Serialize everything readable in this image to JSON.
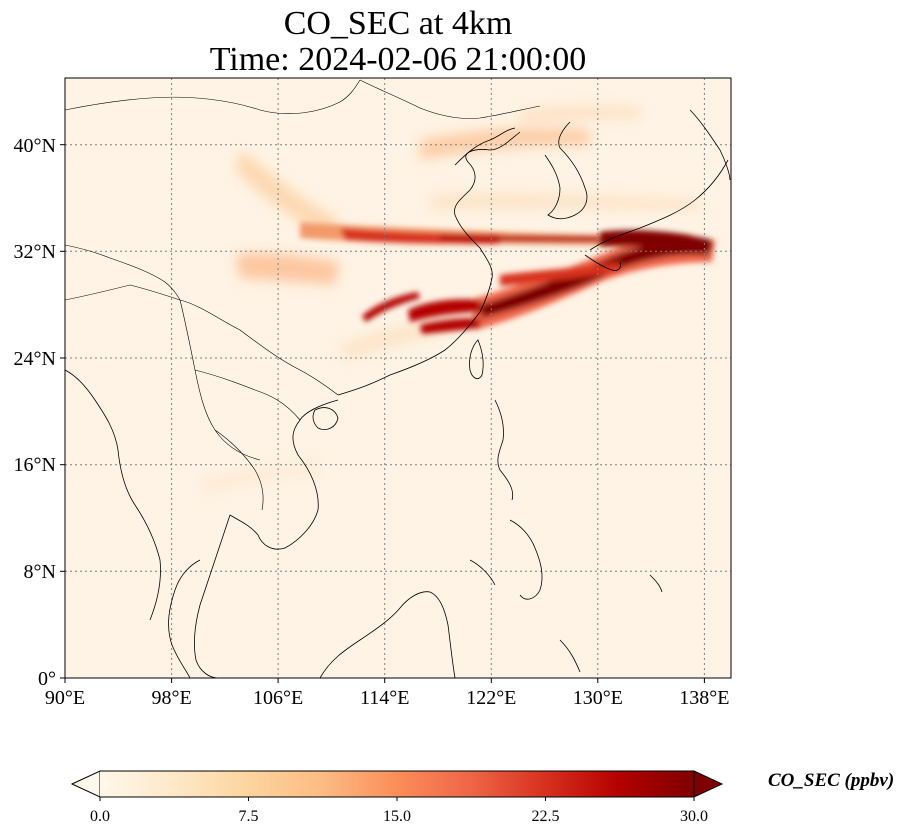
{
  "title": {
    "line1": "CO_SEC at 4km",
    "line2": "Time: 2024-02-06 21:00:00"
  },
  "map": {
    "projection": "PlateCarree",
    "lon_range": [
      90,
      140
    ],
    "lat_range": [
      0,
      45
    ],
    "x_ticks": [
      "90°E",
      "98°E",
      "106°E",
      "114°E",
      "122°E",
      "130°E",
      "138°E"
    ],
    "y_ticks": [
      "0°",
      "8°N",
      "16°N",
      "24°N",
      "32°N",
      "40°N"
    ],
    "gridlines": "dotted"
  },
  "colorbar": {
    "label": "CO_SEC (ppbv)",
    "colormap": "OrRd",
    "range": [
      0,
      30
    ],
    "extend": "both",
    "ticks": [
      "0.0",
      "7.5",
      "15.0",
      "22.5",
      "30.0"
    ],
    "colors": [
      "#fff7ec",
      "#fee8c8",
      "#fdd49e",
      "#fdbb84",
      "#fc8d59",
      "#ef6548",
      "#d7301f",
      "#b30000",
      "#7f0000"
    ]
  }
}
